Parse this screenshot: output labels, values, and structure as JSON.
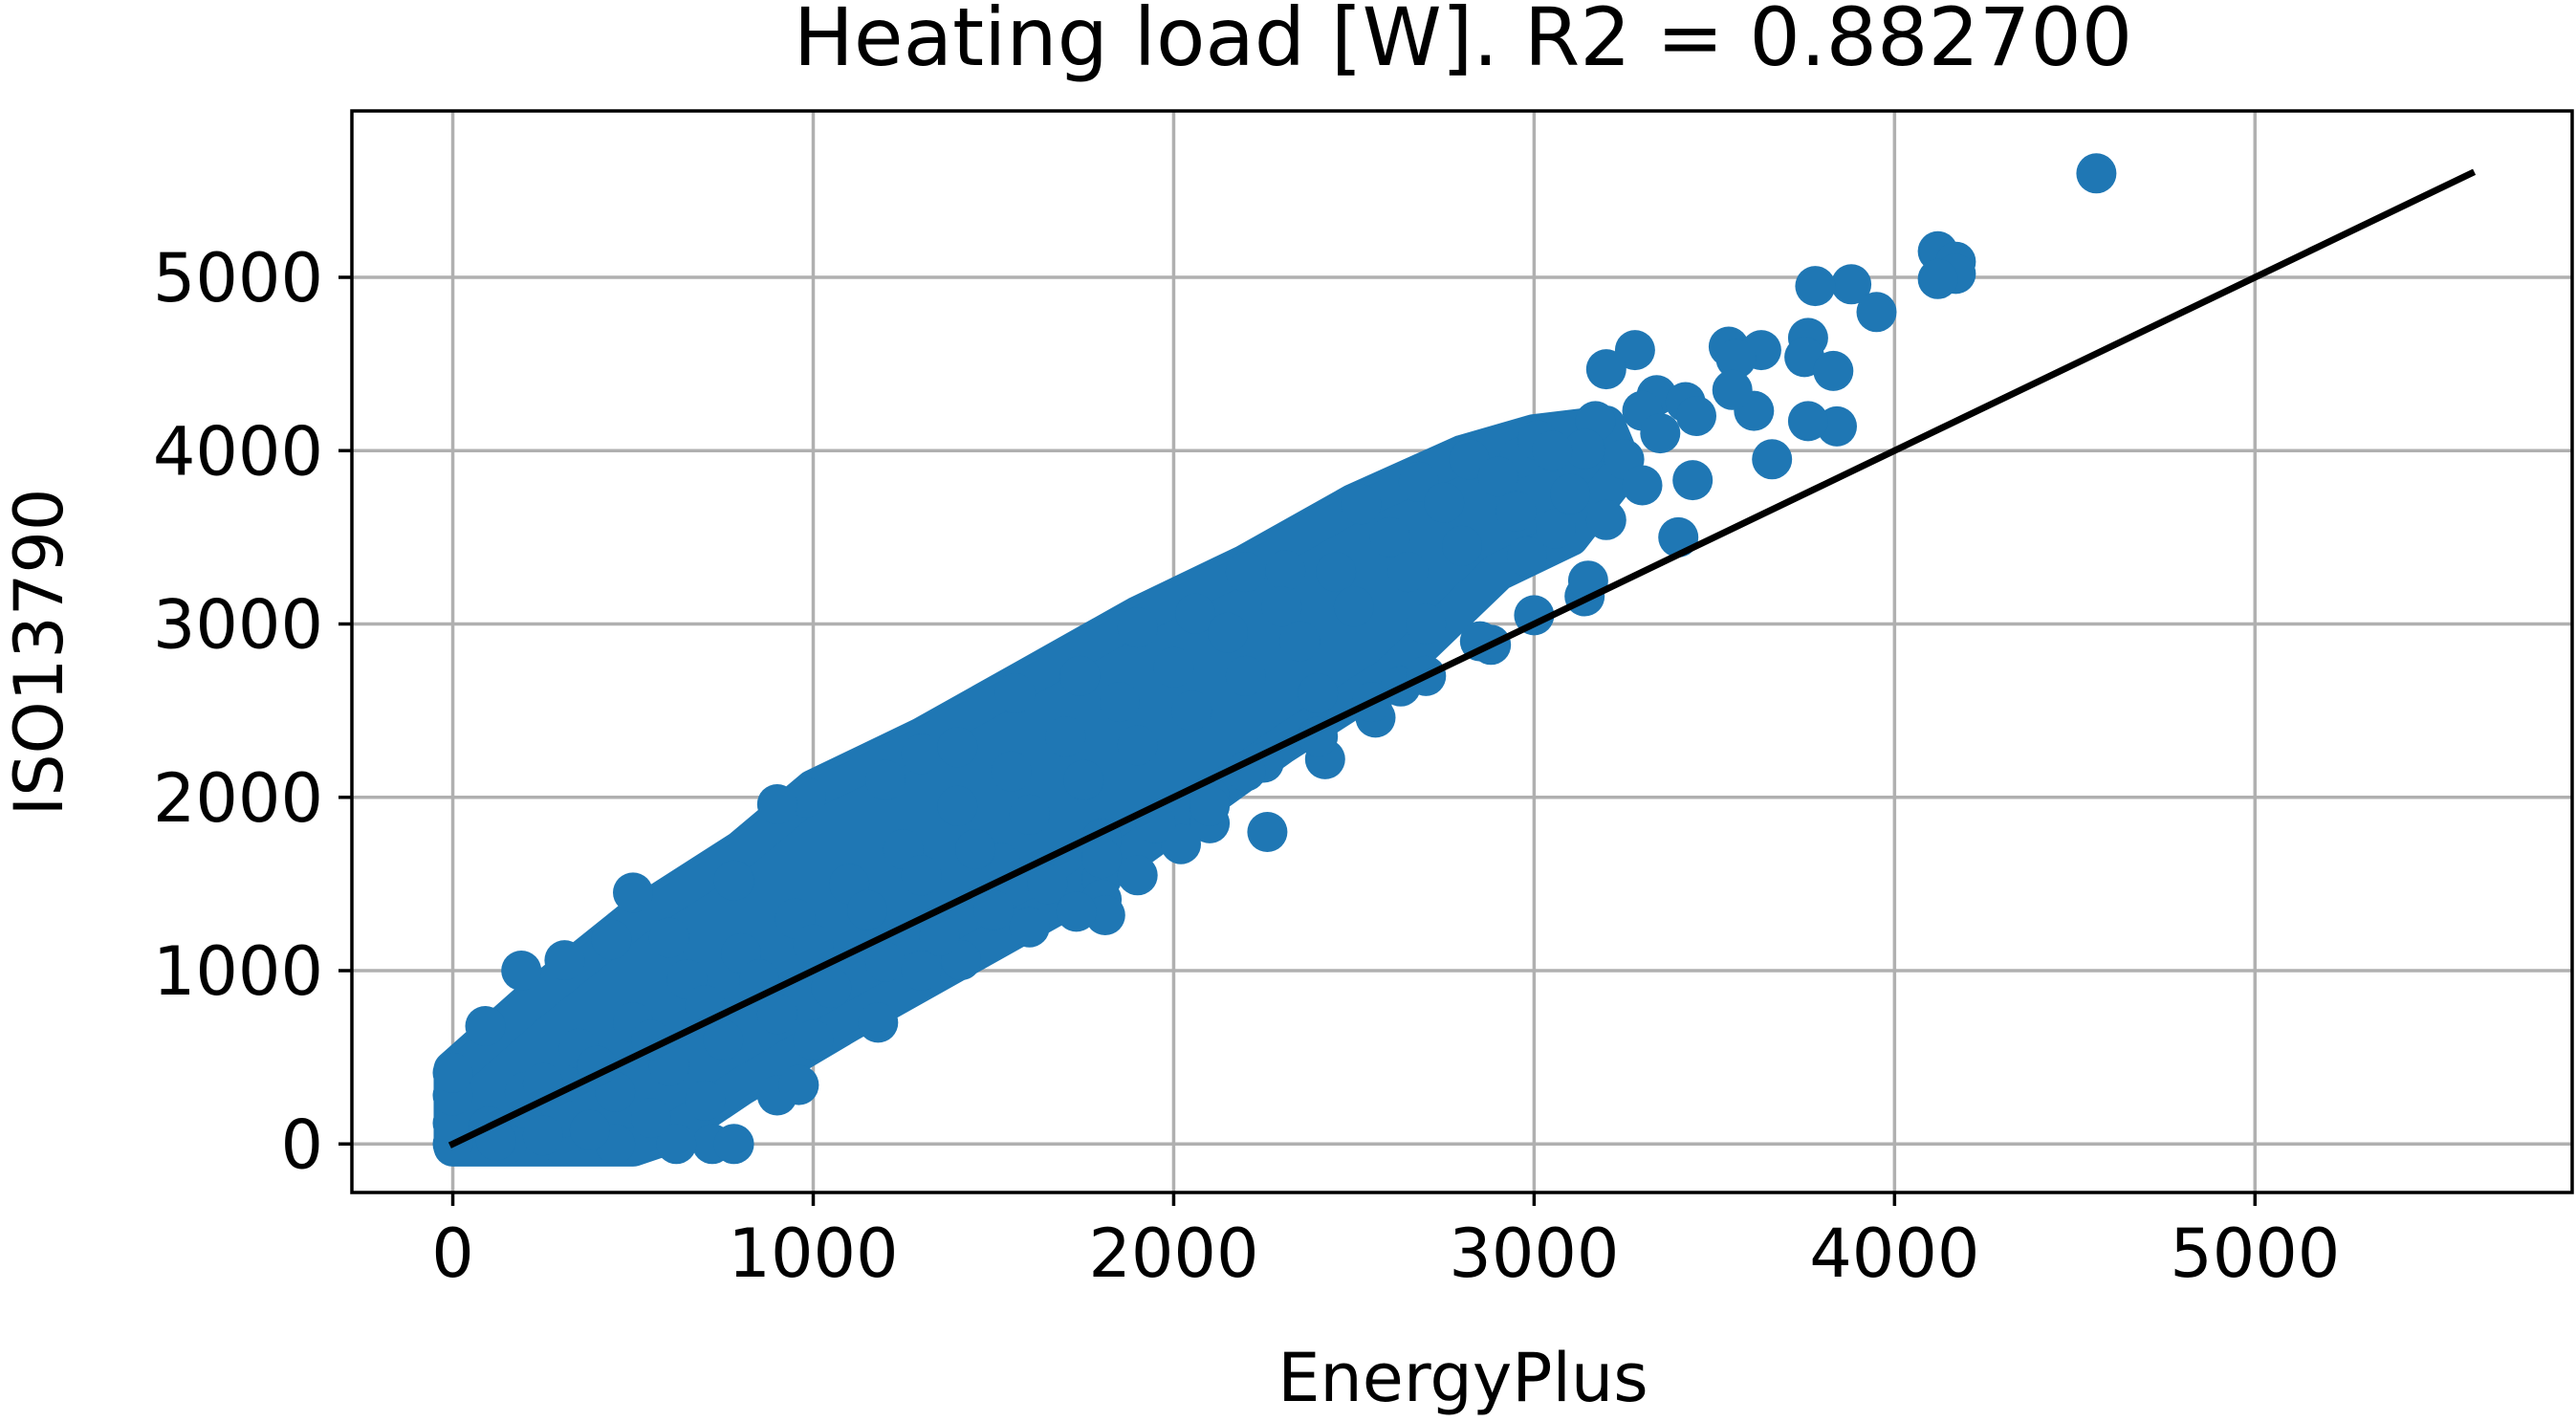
{
  "chart_data": {
    "type": "scatter",
    "title": "Heating load [W]. R2 = 0.882700",
    "xlabel": "EnergyPlus",
    "ylabel": "ISO13790",
    "xlim": [
      -280,
      5880
    ],
    "ylim": [
      -280,
      5960
    ],
    "xticks": [
      0,
      1000,
      2000,
      3000,
      4000,
      5000
    ],
    "yticks": [
      0,
      1000,
      2000,
      3000,
      4000,
      5000
    ],
    "xtick_labels": [
      "0",
      "1000",
      "2000",
      "3000",
      "4000",
      "5000"
    ],
    "ytick_labels": [
      "0",
      "1000",
      "2000",
      "3000",
      "4000",
      "5000"
    ],
    "grid": true,
    "marker_color": "#1f77b4",
    "reference_line": {
      "x": [
        0,
        5600
      ],
      "y": [
        0,
        5600
      ],
      "color": "#000000"
    },
    "series": [
      {
        "values": [
          [
            4560,
            5600
          ],
          [
            4120,
            5150
          ],
          [
            4170,
            5090
          ],
          [
            4170,
            5020
          ],
          [
            4120,
            4990
          ],
          [
            3880,
            4960
          ],
          [
            3780,
            4950
          ],
          [
            3950,
            4800
          ],
          [
            3760,
            4650
          ],
          [
            3750,
            4540
          ],
          [
            3830,
            4460
          ],
          [
            3840,
            4140
          ],
          [
            3760,
            4170
          ],
          [
            3660,
            3950
          ],
          [
            3610,
            4230
          ],
          [
            3540,
            4600
          ],
          [
            3630,
            4580
          ],
          [
            3560,
            4530
          ],
          [
            3280,
            4580
          ],
          [
            3200,
            4470
          ],
          [
            3340,
            4320
          ],
          [
            3420,
            4280
          ],
          [
            3170,
            4170
          ],
          [
            3300,
            4230
          ],
          [
            3440,
            3830
          ],
          [
            3400,
            3500
          ],
          [
            3140,
            3160
          ],
          [
            2880,
            2880
          ],
          [
            2630,
            2640
          ],
          [
            2560,
            2460
          ],
          [
            2420,
            2220
          ],
          [
            2260,
            1800
          ],
          [
            2100,
            1850
          ],
          [
            2020,
            1730
          ],
          [
            1800,
            1760
          ],
          [
            1800,
            1530
          ],
          [
            1800,
            1410
          ],
          [
            1810,
            1320
          ],
          [
            1730,
            1340
          ],
          [
            1520,
            1620
          ],
          [
            1410,
            1060
          ],
          [
            1180,
            700
          ],
          [
            900,
            280
          ],
          [
            960,
            340
          ],
          [
            720,
            0
          ],
          [
            780,
            0
          ],
          [
            620,
            0
          ],
          [
            450,
            0
          ],
          [
            300,
            0
          ],
          [
            150,
            0
          ],
          [
            0,
            0
          ],
          [
            0,
            120
          ],
          [
            0,
            280
          ],
          [
            0,
            410
          ],
          [
            90,
            680
          ],
          [
            190,
            1000
          ],
          [
            310,
            1060
          ],
          [
            440,
            1180
          ],
          [
            500,
            1450
          ],
          [
            600,
            1190
          ],
          [
            780,
            1520
          ],
          [
            980,
            2000
          ],
          [
            900,
            1960
          ],
          [
            1200,
            2100
          ],
          [
            1300,
            2250
          ],
          [
            1400,
            2290
          ],
          [
            1560,
            2600
          ],
          [
            1740,
            2700
          ],
          [
            1900,
            2980
          ],
          [
            2060,
            3060
          ],
          [
            2200,
            3300
          ],
          [
            2310,
            3310
          ],
          [
            2520,
            3690
          ],
          [
            2680,
            3820
          ],
          [
            2820,
            3950
          ],
          [
            2960,
            3960
          ],
          [
            3010,
            4060
          ],
          [
            3140,
            4010
          ],
          [
            3060,
            3550
          ],
          [
            2980,
            3390
          ],
          [
            200,
            300
          ],
          [
            350,
            550
          ],
          [
            500,
            700
          ],
          [
            650,
            950
          ],
          [
            800,
            1100
          ],
          [
            950,
            1300
          ],
          [
            1100,
            1500
          ],
          [
            1250,
            1700
          ],
          [
            1400,
            1950
          ],
          [
            1550,
            2150
          ],
          [
            1700,
            2350
          ],
          [
            1850,
            2550
          ],
          [
            2000,
            2750
          ],
          [
            2150,
            2950
          ],
          [
            2300,
            3100
          ],
          [
            2450,
            3300
          ],
          [
            2600,
            3500
          ],
          [
            2750,
            3700
          ],
          [
            2900,
            3850
          ],
          [
            3050,
            4000
          ],
          [
            300,
            150
          ],
          [
            450,
            300
          ],
          [
            600,
            450
          ],
          [
            750,
            600
          ],
          [
            900,
            750
          ],
          [
            1050,
            900
          ],
          [
            1200,
            1050
          ],
          [
            1350,
            1200
          ],
          [
            1500,
            1350
          ],
          [
            1650,
            1500
          ],
          [
            1800,
            1650
          ],
          [
            1950,
            1850
          ],
          [
            2100,
            2000
          ],
          [
            2250,
            2200
          ],
          [
            2400,
            2350
          ],
          [
            2550,
            2550
          ],
          [
            2700,
            2700
          ],
          [
            2850,
            2900
          ],
          [
            3000,
            3050
          ],
          [
            3150,
            3250
          ],
          [
            100,
            100
          ],
          [
            250,
            350
          ],
          [
            400,
            450
          ],
          [
            550,
            600
          ],
          [
            700,
            800
          ],
          [
            850,
            950
          ],
          [
            1000,
            1150
          ],
          [
            1150,
            1350
          ],
          [
            1300,
            1550
          ],
          [
            1450,
            1700
          ],
          [
            1600,
            1900
          ],
          [
            1750,
            2100
          ],
          [
            1900,
            2300
          ],
          [
            2050,
            2500
          ],
          [
            2200,
            2700
          ],
          [
            2350,
            2900
          ],
          [
            2500,
            3100
          ],
          [
            2650,
            3300
          ],
          [
            2800,
            3450
          ],
          [
            2950,
            3650
          ],
          [
            3100,
            3750
          ],
          [
            3250,
            3950
          ],
          [
            3350,
            4100
          ],
          [
            3450,
            4200
          ],
          [
            3550,
            4350
          ],
          [
            1300,
            1000
          ],
          [
            1600,
            1250
          ],
          [
            1900,
            1550
          ],
          [
            2100,
            1950
          ],
          [
            2400,
            2600
          ],
          [
            2700,
            3000
          ],
          [
            3200,
            3600
          ],
          [
            3300,
            3800
          ],
          [
            2200,
            2150
          ],
          [
            1000,
            600
          ],
          [
            700,
            250
          ],
          [
            550,
            150
          ],
          [
            380,
            80
          ],
          [
            250,
            50
          ],
          [
            120,
            20
          ]
        ]
      }
    ]
  }
}
